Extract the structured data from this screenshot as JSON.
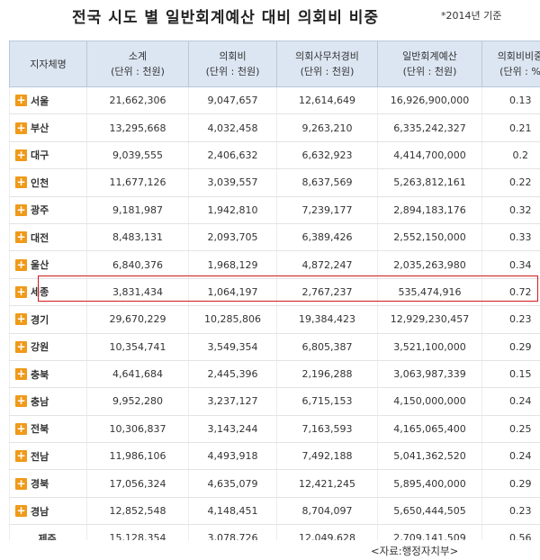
{
  "title": "전국 시도 별 일반회계예산 대비 의회비 비중",
  "basis": "*2014년 기준",
  "headers": [
    {
      "line1": "지자체명",
      "line2": ""
    },
    {
      "line1": "소계",
      "line2": "(단위 : 천원)"
    },
    {
      "line1": "의회비",
      "line2": "(단위 : 천원)"
    },
    {
      "line1": "의회사무처경비",
      "line2": "(단위 : 천원)"
    },
    {
      "line1": "일반회계예산",
      "line2": "(단위 : 천원)"
    },
    {
      "line1": "의회비비중",
      "line2": "(단위 : %"
    }
  ],
  "rows": [
    {
      "region": "서울",
      "subtotal": "21,662,306",
      "council": "9,047,657",
      "secretariat": "12,614,649",
      "budget": "16,926,900,000",
      "ratio": "0.13"
    },
    {
      "region": "부산",
      "subtotal": "13,295,668",
      "council": "4,032,458",
      "secretariat": "9,263,210",
      "budget": "6,335,242,327",
      "ratio": "0.21"
    },
    {
      "region": "대구",
      "subtotal": "9,039,555",
      "council": "2,406,632",
      "secretariat": "6,632,923",
      "budget": "4,414,700,000",
      "ratio": "0.2"
    },
    {
      "region": "인천",
      "subtotal": "11,677,126",
      "council": "3,039,557",
      "secretariat": "8,637,569",
      "budget": "5,263,812,161",
      "ratio": "0.22"
    },
    {
      "region": "광주",
      "subtotal": "9,181,987",
      "council": "1,942,810",
      "secretariat": "7,239,177",
      "budget": "2,894,183,176",
      "ratio": "0.32"
    },
    {
      "region": "대전",
      "subtotal": "8,483,131",
      "council": "2,093,705",
      "secretariat": "6,389,426",
      "budget": "2,552,150,000",
      "ratio": "0.33"
    },
    {
      "region": "울산",
      "subtotal": "6,840,376",
      "council": "1,968,129",
      "secretariat": "4,872,247",
      "budget": "2,035,263,980",
      "ratio": "0.34"
    },
    {
      "region": "세종",
      "subtotal": "3,831,434",
      "council": "1,064,197",
      "secretariat": "2,767,237",
      "budget": "535,474,916",
      "ratio": "0.72"
    },
    {
      "region": "경기",
      "subtotal": "29,670,229",
      "council": "10,285,806",
      "secretariat": "19,384,423",
      "budget": "12,929,230,457",
      "ratio": "0.23"
    },
    {
      "region": "강원",
      "subtotal": "10,354,741",
      "council": "3,549,354",
      "secretariat": "6,805,387",
      "budget": "3,521,100,000",
      "ratio": "0.29"
    },
    {
      "region": "충북",
      "subtotal": "4,641,684",
      "council": "2,445,396",
      "secretariat": "2,196,288",
      "budget": "3,063,987,339",
      "ratio": "0.15"
    },
    {
      "region": "충남",
      "subtotal": "9,952,280",
      "council": "3,237,127",
      "secretariat": "6,715,153",
      "budget": "4,150,000,000",
      "ratio": "0.24"
    },
    {
      "region": "전북",
      "subtotal": "10,306,837",
      "council": "3,143,244",
      "secretariat": "7,163,593",
      "budget": "4,165,065,400",
      "ratio": "0.25"
    },
    {
      "region": "전남",
      "subtotal": "11,986,106",
      "council": "4,493,918",
      "secretariat": "7,492,188",
      "budget": "5,041,362,520",
      "ratio": "0.24"
    },
    {
      "region": "경북",
      "subtotal": "17,056,324",
      "council": "4,635,079",
      "secretariat": "12,421,245",
      "budget": "5,895,400,000",
      "ratio": "0.29"
    },
    {
      "region": "경남",
      "subtotal": "12,852,548",
      "council": "4,148,451",
      "secretariat": "8,704,097",
      "budget": "5,650,444,505",
      "ratio": "0.23"
    },
    {
      "region": "제주",
      "subtotal": "15,128,354",
      "council": "3,078,726",
      "secretariat": "12,049,628",
      "budget": "2,709,141,509",
      "ratio": "0.56"
    }
  ],
  "source": "<자료:행정자치부>",
  "colors": {
    "header_bg": "#dce6f2",
    "plus": "#f09a1a",
    "highlight": "#d11a1a"
  }
}
